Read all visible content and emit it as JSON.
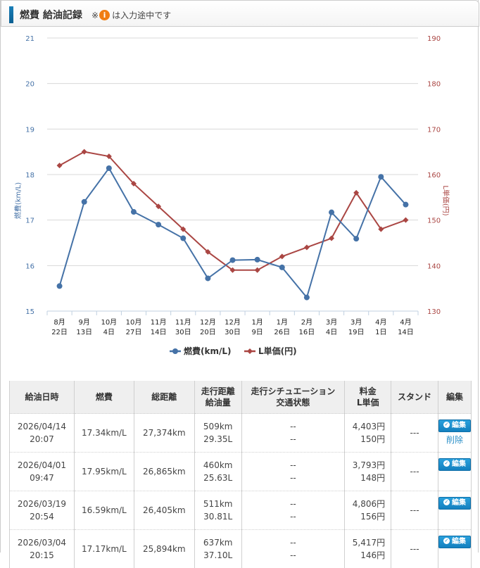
{
  "header": {
    "title": "燃費 給油記録",
    "note_prefix": "※",
    "note_icon": "info-icon",
    "note_icon_glyph": "i",
    "note_suffix": "は入力途中です"
  },
  "chart_data": {
    "type": "line",
    "x": [
      "8月\n22日",
      "9月\n13日",
      "10月\n4日",
      "10月\n27日",
      "11月\n14日",
      "11月\n30日",
      "12月\n20日",
      "12月\n30日",
      "1月\n9日",
      "1月\n26日",
      "2月\n16日",
      "3月\n4日",
      "3月\n19日",
      "4月\n1日",
      "4月\n14日"
    ],
    "x_lines": [
      [
        "8月",
        "22日"
      ],
      [
        "9月",
        "13日"
      ],
      [
        "10月",
        "4日"
      ],
      [
        "10月",
        "27日"
      ],
      [
        "11月",
        "14日"
      ],
      [
        "11月",
        "30日"
      ],
      [
        "12月",
        "20日"
      ],
      [
        "12月",
        "30日"
      ],
      [
        "1月",
        "9日"
      ],
      [
        "1月",
        "26日"
      ],
      [
        "2月",
        "16日"
      ],
      [
        "3月",
        "4日"
      ],
      [
        "3月",
        "19日"
      ],
      [
        "4月",
        "1日"
      ],
      [
        "4月",
        "14日"
      ]
    ],
    "series": [
      {
        "name": "燃費(km/L)",
        "axis": "left",
        "color": "#4572a7",
        "marker": "circle",
        "values": [
          15.55,
          17.4,
          18.14,
          17.18,
          16.9,
          16.6,
          15.72,
          16.12,
          16.13,
          15.96,
          15.3,
          17.17,
          16.59,
          17.95,
          17.34
        ]
      },
      {
        "name": "L単価(円)",
        "axis": "right",
        "color": "#aa4643",
        "marker": "diamond",
        "values": [
          162,
          165,
          164,
          158,
          153,
          148,
          143,
          139,
          139,
          142,
          144,
          146,
          156,
          148,
          150
        ]
      }
    ],
    "ylabel": "燃費(km/L)",
    "ylabel_right": "L単価(円)",
    "ylim": [
      15,
      21
    ],
    "ylim_right": [
      130,
      190
    ],
    "yticks": [
      "21",
      "20",
      "19",
      "18",
      "17",
      "16",
      "15"
    ],
    "yticks_right": [
      "190",
      "180",
      "170",
      "160",
      "150",
      "140",
      "130"
    ],
    "grid": true,
    "legend": "bottom-center",
    "colors": {
      "grid": "#d8d8d8",
      "left_axis": "#4572a7",
      "right_axis": "#aa4643"
    }
  },
  "table": {
    "headers": [
      [
        "給油日時"
      ],
      [
        "燃費"
      ],
      [
        "総距離"
      ],
      [
        "走行距離",
        "給油量"
      ],
      [
        "走行シチュエーション",
        "交通状態"
      ],
      [
        "料金",
        "L単価"
      ],
      [
        "スタンド"
      ],
      [
        "編集"
      ]
    ],
    "rows": [
      {
        "date": "2026/04/14",
        "time": "20:07",
        "mileage": "17.34km/L",
        "odometer": "27,374km",
        "distance": "509km",
        "volume": "29.35L",
        "situation": "--",
        "traffic": "--",
        "cost": "4,403円",
        "unit_price": "150円",
        "stand": "---",
        "edit_label": "編集",
        "delete_label": "削除"
      },
      {
        "date": "2026/04/01",
        "time": "09:47",
        "mileage": "17.95km/L",
        "odometer": "26,865km",
        "distance": "460km",
        "volume": "25.63L",
        "situation": "--",
        "traffic": "--",
        "cost": "3,793円",
        "unit_price": "148円",
        "stand": "---",
        "edit_label": "編集"
      },
      {
        "date": "2026/03/19",
        "time": "20:54",
        "mileage": "16.59km/L",
        "odometer": "26,405km",
        "distance": "511km",
        "volume": "30.81L",
        "situation": "--",
        "traffic": "--",
        "cost": "4,806円",
        "unit_price": "156円",
        "stand": "---",
        "edit_label": "編集"
      },
      {
        "date": "2026/03/04",
        "time": "20:15",
        "mileage": "17.17km/L",
        "odometer": "25,894km",
        "distance": "637km",
        "volume": "37.10L",
        "situation": "--",
        "traffic": "--",
        "cost": "5,417円",
        "unit_price": "146円",
        "stand": "---",
        "edit_label": "編集"
      }
    ]
  }
}
